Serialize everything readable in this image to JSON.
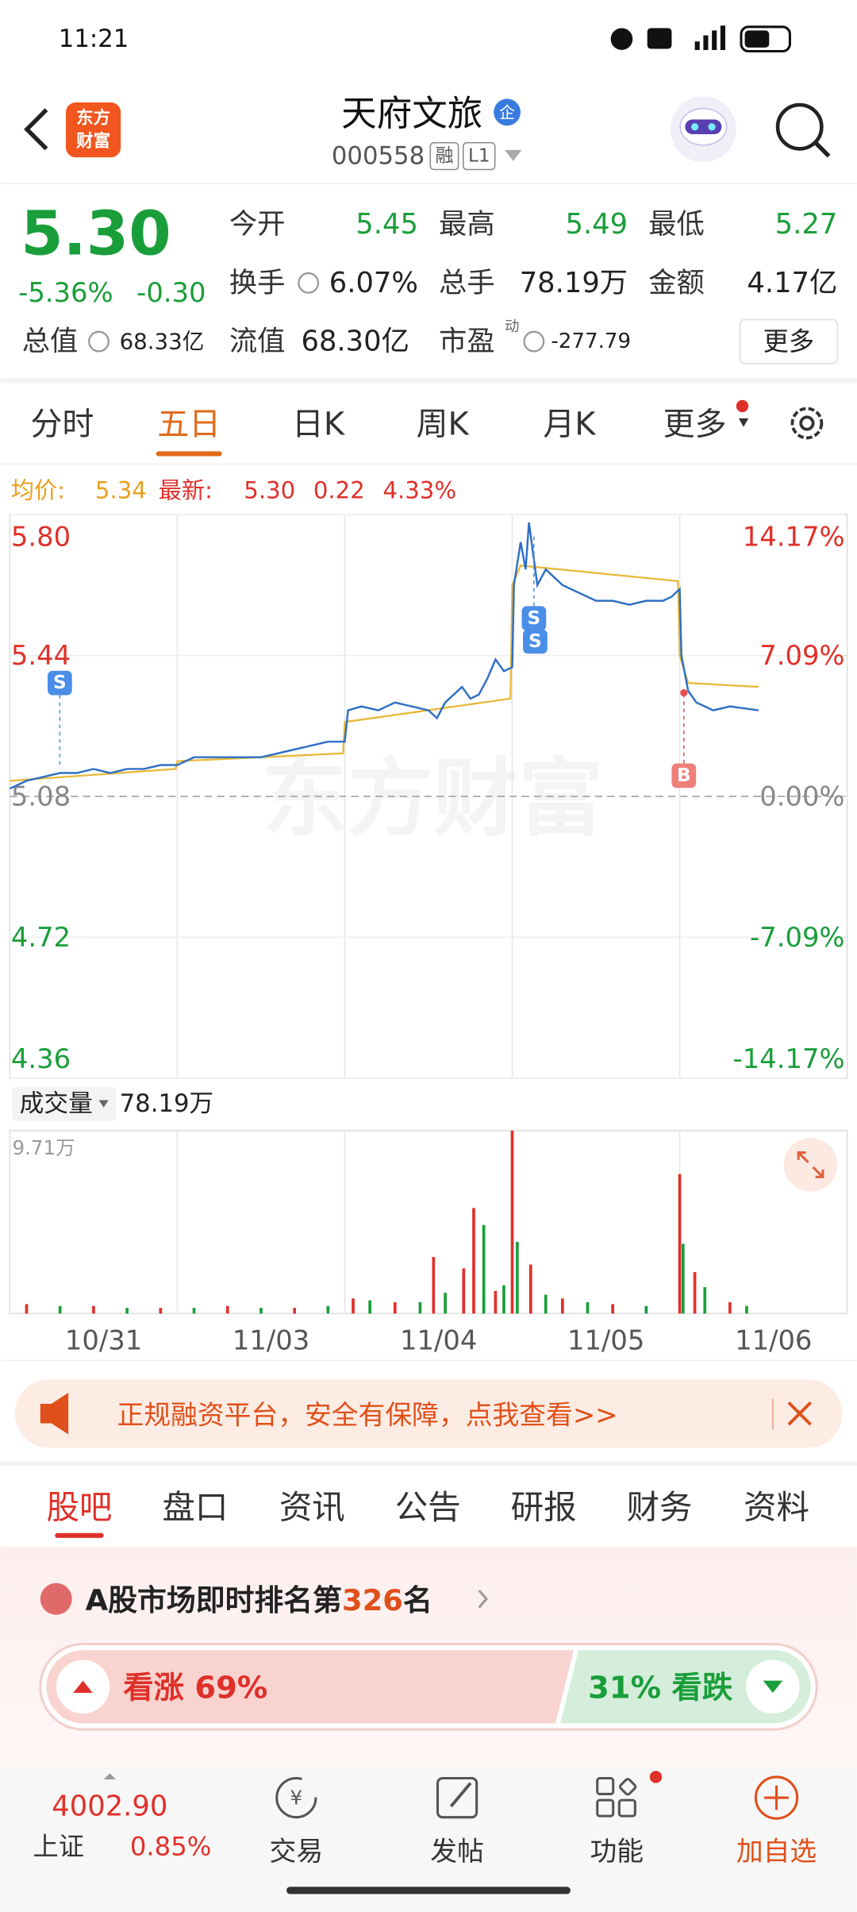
{
  "status_bar": {
    "time": "11:21"
  },
  "header": {
    "logo_top": "东方",
    "logo_bottom": "财富",
    "title": "天府文旅",
    "tag": "企",
    "code": "000558",
    "badges": [
      "融",
      "L1"
    ]
  },
  "quote": {
    "price": "5.30",
    "change_pct": "-5.36%",
    "change": "-0.30",
    "fields": [
      {
        "label": "今开",
        "value": "5.45"
      },
      {
        "label": "最高",
        "value": "5.49"
      },
      {
        "label": "最低",
        "value": "5.27"
      },
      {
        "label": "换手",
        "value": "6.07%"
      },
      {
        "label": "总手",
        "value": "78.19万"
      },
      {
        "label": "金额",
        "value": "4.17亿"
      },
      {
        "label": "总值",
        "value": "68.33亿"
      },
      {
        "label": "流值",
        "value": "68.30亿"
      },
      {
        "label": "市盈",
        "sup": "动",
        "value": "-277.79"
      }
    ],
    "more": "更多"
  },
  "chart_tabs": {
    "items": [
      "分时",
      "五日",
      "日K",
      "周K",
      "月K",
      "更多"
    ],
    "active": 1
  },
  "legend": {
    "avg_label": "均价:",
    "avg": "5.34",
    "latest_label": "最新:",
    "latest": "5.30",
    "change": "0.22",
    "pct": "4.33%"
  },
  "watermark": "东方财富",
  "trade_marks": [
    "S",
    "S",
    "S",
    "B"
  ],
  "chart_data": [
    {
      "type": "line",
      "xlim": [
        0,
        5
      ],
      "ylim": [
        4.36,
        5.8
      ],
      "yticks": [
        {
          "value": 5.8,
          "label": "5.80"
        },
        {
          "value": 5.44,
          "label": "5.44"
        },
        {
          "value": 5.08,
          "label": "5.08"
        },
        {
          "value": 4.72,
          "label": "4.72"
        },
        {
          "value": 4.36,
          "label": "4.36"
        }
      ],
      "y2lim": [
        -14.17,
        14.17
      ],
      "y2ticks": [
        {
          "value": 14.17,
          "label": "14.17%"
        },
        {
          "value": 7.09,
          "label": "7.09%"
        },
        {
          "value": 0,
          "label": "0.00%"
        },
        {
          "value": -7.09,
          "label": "-7.09%"
        },
        {
          "value": -14.17,
          "label": "-14.17%"
        }
      ],
      "series": [
        {
          "color": "#2f6fc4",
          "x": [
            0,
            0.1,
            0.2,
            0.3,
            0.4,
            0.5,
            0.6,
            0.7,
            0.8,
            0.9,
            1.0,
            1.1,
            1.3,
            1.5,
            1.7,
            1.9,
            2.0,
            2.02,
            2.1,
            2.2,
            2.3,
            2.4,
            2.5,
            2.55,
            2.6,
            2.7,
            2.75,
            2.8,
            2.85,
            2.9,
            2.95,
            3.0,
            3.01,
            3.05,
            3.08,
            3.1,
            3.15,
            3.2,
            3.3,
            3.4,
            3.5,
            3.6,
            3.7,
            3.8,
            3.9,
            3.95,
            4.0,
            4.01,
            4.05,
            4.1,
            4.2,
            4.3,
            4.47
          ],
          "values": [
            5.1,
            5.12,
            5.13,
            5.14,
            5.14,
            5.15,
            5.14,
            5.15,
            5.15,
            5.16,
            5.16,
            5.18,
            5.18,
            5.18,
            5.2,
            5.22,
            5.22,
            5.3,
            5.31,
            5.3,
            5.32,
            5.31,
            5.3,
            5.28,
            5.32,
            5.36,
            5.33,
            5.34,
            5.38,
            5.43,
            5.4,
            5.41,
            5.62,
            5.73,
            5.66,
            5.78,
            5.62,
            5.66,
            5.62,
            5.6,
            5.58,
            5.58,
            5.57,
            5.58,
            5.58,
            5.59,
            5.61,
            5.44,
            5.35,
            5.32,
            5.3,
            5.31,
            5.3
          ]
        },
        {
          "color": "#e8b83a",
          "x": [
            0,
            0.99,
            1.0,
            1.99,
            2.0,
            2.99,
            3.0,
            3.05,
            3.99,
            4.0,
            4.05,
            4.47
          ],
          "values": [
            5.12,
            5.15,
            5.17,
            5.19,
            5.27,
            5.33,
            5.62,
            5.67,
            5.63,
            5.44,
            5.37,
            5.36
          ]
        }
      ]
    },
    {
      "type": "bar",
      "label": "成交量",
      "total": "78.19万",
      "categories": [
        "10/31",
        "11/03",
        "11/04",
        "11/05",
        "11/06"
      ],
      "xlim": [
        0,
        5
      ],
      "ylim": [
        0,
        9.71
      ],
      "yticks": [
        {
          "value": 9.71,
          "label": "9.71万"
        }
      ],
      "series": [
        {
          "color": "#e0302a",
          "x": [
            0.1,
            0.5,
            0.9,
            1.3,
            1.7,
            2.05,
            2.3,
            2.53,
            2.71,
            2.77,
            2.9,
            3.0,
            3.11,
            3.3,
            3.6,
            4.0,
            4.09,
            4.3
          ],
          "values": [
            0.5,
            0.4,
            0.3,
            0.4,
            0.3,
            0.8,
            0.6,
            3.0,
            2.4,
            5.6,
            1.2,
            9.71,
            2.6,
            0.8,
            0.5,
            7.4,
            2.2,
            0.6
          ]
        },
        {
          "color": "#1a9e3a",
          "x": [
            0.3,
            0.7,
            1.1,
            1.5,
            1.9,
            2.15,
            2.45,
            2.6,
            2.83,
            2.95,
            3.03,
            3.2,
            3.45,
            3.8,
            4.02,
            4.15,
            4.4
          ],
          "values": [
            0.4,
            0.3,
            0.3,
            0.3,
            0.4,
            0.7,
            0.6,
            1.1,
            4.7,
            1.5,
            3.8,
            1.0,
            0.6,
            0.4,
            3.7,
            1.4,
            0.4
          ]
        }
      ]
    }
  ],
  "ad": {
    "text": "正规融资平台，安全有保障，点我查看>>"
  },
  "section_tabs": {
    "items": [
      "股吧",
      "盘口",
      "资讯",
      "公告",
      "研报",
      "财务",
      "资料"
    ],
    "active": 0
  },
  "ranking": {
    "prefix": "A股市场即时排名第",
    "rank": "326",
    "suffix": "名"
  },
  "sentiment": {
    "bull": {
      "label": "看涨 69%",
      "value": 69
    },
    "bear": {
      "label": "31% 看跌",
      "value": 31
    }
  },
  "bottom_nav": {
    "index_value": "4002.90",
    "index_name": "上证",
    "index_change": "0.85%",
    "items": [
      "交易",
      "发帖",
      "功能",
      "加自选"
    ]
  }
}
